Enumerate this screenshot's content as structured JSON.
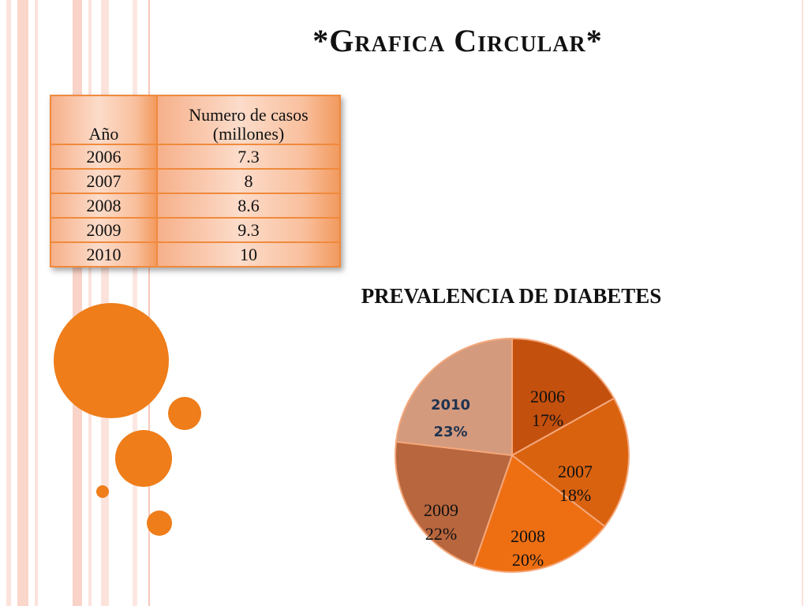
{
  "title": "*Grafica Circular*",
  "table": {
    "headers": [
      "Año",
      "Numero de casos (millones)"
    ],
    "rows": [
      [
        "2006",
        "7.3"
      ],
      [
        "2007",
        "8"
      ],
      [
        "2008",
        "8.6"
      ],
      [
        "2009",
        "9.3"
      ],
      [
        "2010",
        "10"
      ]
    ]
  },
  "chart_data": {
    "type": "pie",
    "title": "PREVALENCIA DE DIABETES",
    "categories": [
      "2006",
      "2007",
      "2008",
      "2009",
      "2010"
    ],
    "values": [
      7.3,
      8,
      8.6,
      9.3,
      10
    ],
    "data_labels": [
      "17%",
      "18%",
      "20%",
      "22%",
      "23%"
    ],
    "colors": [
      "#c4500d",
      "#d9620f",
      "#ee6f12",
      "#b8663e",
      "#d49a7d"
    ]
  }
}
